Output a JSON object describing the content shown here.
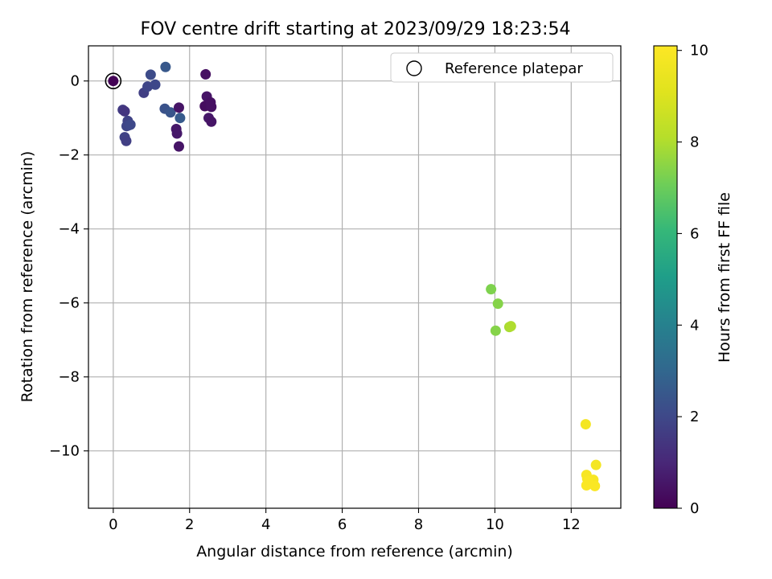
{
  "chart_data": {
    "type": "scatter",
    "title": "FOV centre drift starting at 2023/09/29 18:23:54",
    "xlabel": "Angular distance from reference (arcmin)",
    "ylabel": "Rotation from reference (arcmin)",
    "xlim": [
      -0.65,
      13.3
    ],
    "ylim": [
      -11.55,
      0.95
    ],
    "xticks": [
      0,
      2,
      4,
      6,
      8,
      10,
      12
    ],
    "yticks": [
      0,
      -2,
      -4,
      -6,
      -8,
      -10
    ],
    "xtick_labels": [
      "0",
      "2",
      "4",
      "6",
      "8",
      "10",
      "12"
    ],
    "ytick_labels": [
      "0",
      "−2",
      "−4",
      "−6",
      "−8",
      "−10"
    ],
    "grid": true,
    "legend": {
      "placement": "upper-right",
      "label": "Reference platepar"
    },
    "colorbar": {
      "label": "Hours from first FF file",
      "colormap": "viridis",
      "range": [
        0,
        10.1
      ],
      "ticks": [
        0,
        2,
        4,
        6,
        8,
        10
      ],
      "tick_labels": [
        "0",
        "2",
        "4",
        "6",
        "8",
        "10"
      ]
    },
    "reference_point": {
      "x": 0,
      "y": 0
    },
    "points": [
      {
        "x": 0.0,
        "y": 0.0,
        "h": 0.05
      },
      {
        "x": 0.25,
        "y": -0.78,
        "h": 1.6
      },
      {
        "x": 0.3,
        "y": -0.82,
        "h": 1.4
      },
      {
        "x": 0.38,
        "y": -1.08,
        "h": 1.8
      },
      {
        "x": 0.4,
        "y": -1.2,
        "h": 1.9
      },
      {
        "x": 0.35,
        "y": -1.22,
        "h": 1.9
      },
      {
        "x": 0.45,
        "y": -1.18,
        "h": 2.0
      },
      {
        "x": 0.3,
        "y": -1.52,
        "h": 1.8
      },
      {
        "x": 0.34,
        "y": -1.62,
        "h": 1.7
      },
      {
        "x": 0.8,
        "y": -0.32,
        "h": 1.7
      },
      {
        "x": 0.9,
        "y": -0.15,
        "h": 1.9
      },
      {
        "x": 0.98,
        "y": 0.17,
        "h": 2.1
      },
      {
        "x": 1.1,
        "y": -0.1,
        "h": 2.0
      },
      {
        "x": 1.37,
        "y": 0.38,
        "h": 2.5
      },
      {
        "x": 1.35,
        "y": -0.75,
        "h": 2.3
      },
      {
        "x": 1.5,
        "y": -0.85,
        "h": 2.4
      },
      {
        "x": 1.75,
        "y": -1.0,
        "h": 2.6
      },
      {
        "x": 1.72,
        "y": -0.72,
        "h": 0.5
      },
      {
        "x": 1.65,
        "y": -1.3,
        "h": 0.6
      },
      {
        "x": 1.67,
        "y": -1.42,
        "h": 0.6
      },
      {
        "x": 1.72,
        "y": -1.77,
        "h": 0.5
      },
      {
        "x": 2.42,
        "y": 0.18,
        "h": 0.4
      },
      {
        "x": 2.45,
        "y": -0.42,
        "h": 0.5
      },
      {
        "x": 2.4,
        "y": -0.68,
        "h": 0.3
      },
      {
        "x": 2.55,
        "y": -0.58,
        "h": 0.4
      },
      {
        "x": 2.57,
        "y": -0.7,
        "h": 0.4
      },
      {
        "x": 2.5,
        "y": -1.0,
        "h": 0.6
      },
      {
        "x": 2.57,
        "y": -1.1,
        "h": 0.5
      },
      {
        "x": 9.9,
        "y": -5.63,
        "h": 7.3
      },
      {
        "x": 10.08,
        "y": -6.02,
        "h": 7.4
      },
      {
        "x": 10.02,
        "y": -6.75,
        "h": 7.4
      },
      {
        "x": 10.38,
        "y": -6.65,
        "h": 7.9
      },
      {
        "x": 10.42,
        "y": -6.63,
        "h": 8.0
      },
      {
        "x": 12.38,
        "y": -9.28,
        "h": 9.8
      },
      {
        "x": 12.65,
        "y": -10.38,
        "h": 9.8
      },
      {
        "x": 12.4,
        "y": -10.65,
        "h": 9.9
      },
      {
        "x": 12.42,
        "y": -10.75,
        "h": 9.9
      },
      {
        "x": 12.58,
        "y": -10.78,
        "h": 9.9
      },
      {
        "x": 12.45,
        "y": -10.82,
        "h": 10.0
      },
      {
        "x": 12.4,
        "y": -10.93,
        "h": 10.0
      },
      {
        "x": 12.62,
        "y": -10.95,
        "h": 10.0
      }
    ]
  }
}
